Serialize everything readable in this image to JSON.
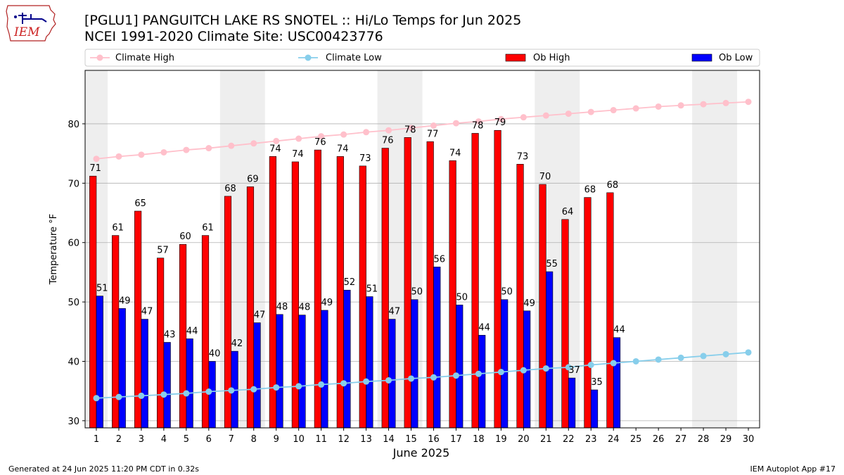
{
  "logo": {
    "text": "IEM"
  },
  "header": {
    "title": "[PGLU1] PANGUITCH LAKE RS SNOTEL :: Hi/Lo Temps for Jun 2025",
    "subtitle": "NCEI 1991-2020 Climate Site: USC00423776"
  },
  "footer": {
    "left": "Generated at 24 Jun 2025 11:20 PM CDT in 0.32s",
    "right": "IEM Autoplot App #17"
  },
  "chart_data": {
    "type": "bar",
    "xlabel": "June 2025",
    "ylabel": "Temperature °F",
    "ylim": [
      28.8,
      89.0
    ],
    "yticks": [
      30,
      40,
      50,
      60,
      70,
      80
    ],
    "grid": true,
    "legend_position": "top",
    "categories": [
      "1",
      "2",
      "3",
      "4",
      "5",
      "6",
      "7",
      "8",
      "9",
      "10",
      "11",
      "12",
      "13",
      "14",
      "15",
      "16",
      "17",
      "18",
      "19",
      "20",
      "21",
      "22",
      "23",
      "24",
      "25",
      "26",
      "27",
      "28",
      "29",
      "30"
    ],
    "weekend_shading_days": [
      [
        1,
        1
      ],
      [
        7,
        8
      ],
      [
        14,
        15
      ],
      [
        21,
        22
      ],
      [
        28,
        29
      ]
    ],
    "series": [
      {
        "name": "Climate High",
        "kind": "line",
        "color": "#ffc0cb",
        "values": [
          74.1,
          74.5,
          74.8,
          75.2,
          75.6,
          75.9,
          76.3,
          76.7,
          77.1,
          77.5,
          77.9,
          78.2,
          78.6,
          78.9,
          79.3,
          79.7,
          80.1,
          80.4,
          80.8,
          81.1,
          81.4,
          81.7,
          82.0,
          82.3,
          82.6,
          82.9,
          83.1,
          83.3,
          83.5,
          83.7
        ]
      },
      {
        "name": "Climate Low",
        "kind": "line",
        "color": "#87ceeb",
        "values": [
          33.8,
          34.0,
          34.2,
          34.4,
          34.6,
          34.9,
          35.1,
          35.3,
          35.6,
          35.8,
          36.1,
          36.3,
          36.6,
          36.8,
          37.1,
          37.3,
          37.6,
          37.9,
          38.2,
          38.5,
          38.8,
          39.0,
          39.4,
          39.7,
          40.0,
          40.3,
          40.6,
          40.9,
          41.2,
          41.5
        ]
      },
      {
        "name": "Ob High",
        "kind": "bar",
        "color": "#ff0000",
        "values": [
          71.2,
          61.2,
          65.3,
          57.4,
          59.7,
          61.2,
          67.8,
          69.4,
          74.5,
          73.6,
          75.6,
          74.5,
          72.9,
          75.9,
          77.7,
          77.0,
          73.8,
          78.4,
          78.9,
          73.2,
          69.8,
          63.9,
          67.6,
          68.4,
          null,
          null,
          null,
          null,
          null,
          null
        ],
        "labels": [
          "71",
          "61",
          "65",
          "57",
          "60",
          "61",
          "68",
          "69",
          "74",
          "74",
          "76",
          "74",
          "73",
          "76",
          "78",
          "77",
          "74",
          "78",
          "79",
          "73",
          "70",
          "64",
          "68",
          "68",
          "",
          "",
          "",
          "",
          "",
          ""
        ]
      },
      {
        "name": "Ob Low",
        "kind": "bar",
        "color": "#0000ff",
        "values": [
          51.0,
          48.9,
          47.1,
          43.2,
          43.8,
          40.0,
          41.7,
          46.5,
          47.9,
          47.8,
          48.6,
          52.0,
          50.9,
          47.1,
          50.4,
          55.9,
          49.5,
          44.4,
          50.4,
          48.5,
          55.1,
          37.2,
          35.2,
          44.0,
          null,
          null,
          null,
          null,
          null,
          null
        ],
        "labels": [
          "51",
          "49",
          "47",
          "43",
          "44",
          "40",
          "42",
          "47",
          "48",
          "48",
          "49",
          "52",
          "51",
          "47",
          "50",
          "56",
          "50",
          "44",
          "50",
          "49",
          "55",
          "37",
          "35",
          "44",
          "",
          "",
          "",
          "",
          "",
          ""
        ]
      }
    ]
  }
}
